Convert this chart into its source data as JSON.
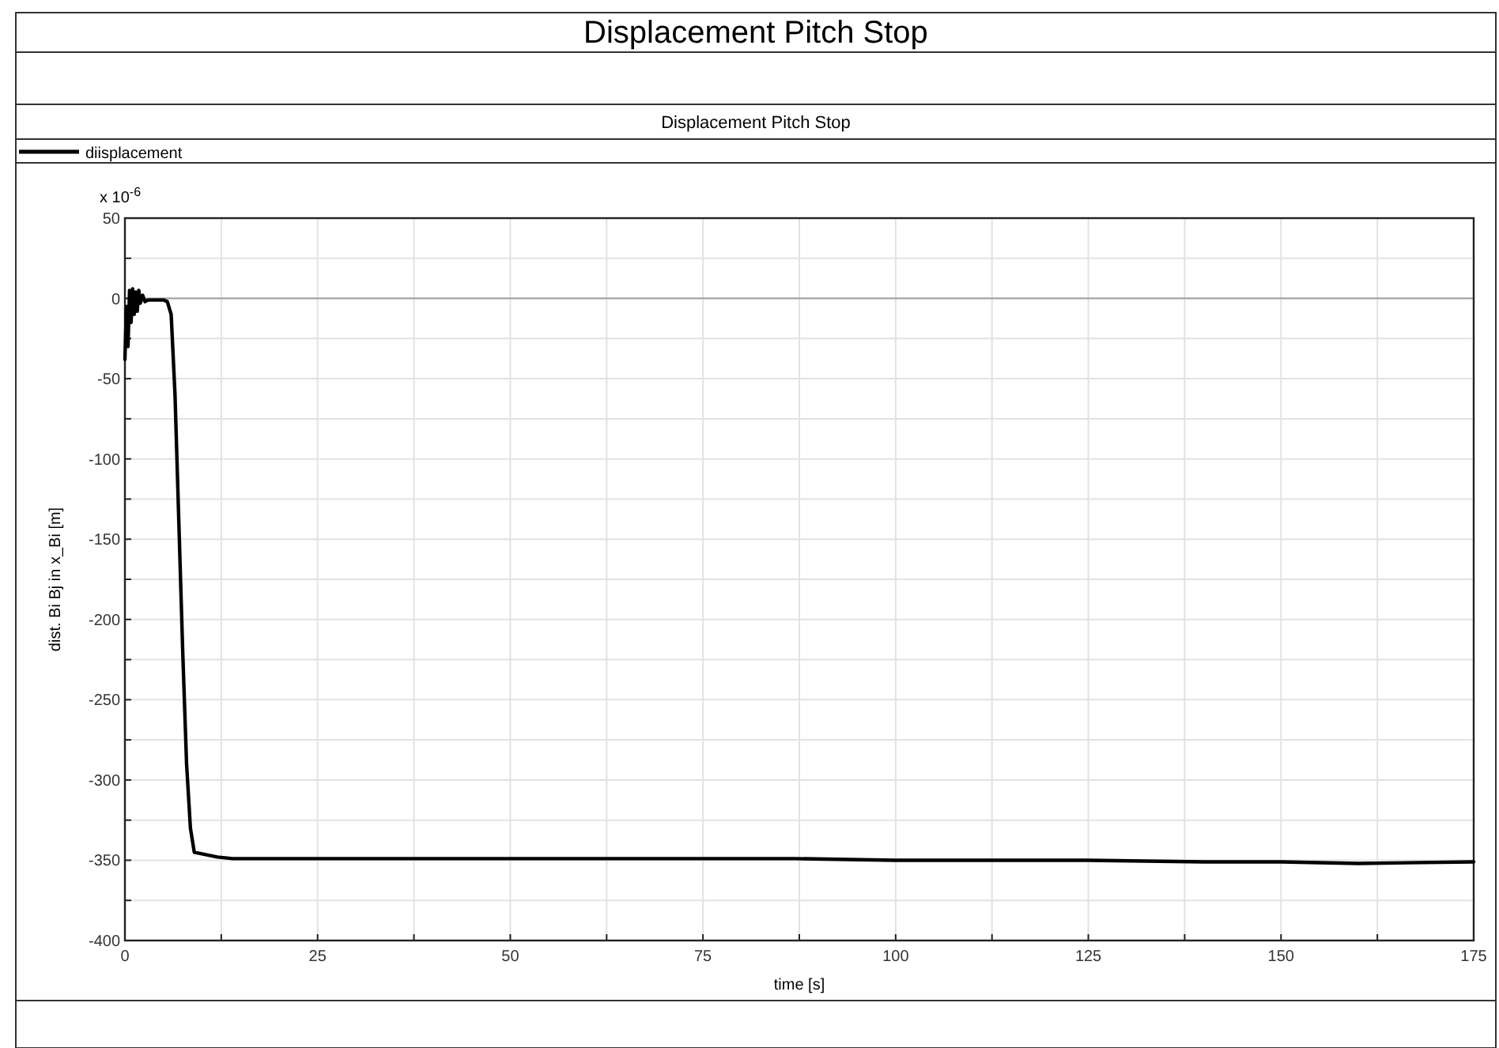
{
  "chart_data": {
    "type": "line",
    "title": "Displacement Pitch Stop",
    "subtitle": "Displacement Pitch Stop",
    "xlabel": "time [s]",
    "ylabel": "dist. Bi Bj in x_Bi [m]",
    "annotations": [
      "x 10$^{-6}$"
    ],
    "legend": "top",
    "grid": true,
    "line_style": "solid",
    "marker": "none",
    "xlim": [
      0,
      175
    ],
    "xticks": [
      0,
      {
        "value": 12.5,
        "label": null
      },
      25,
      {
        "value": 37.5,
        "label": null
      },
      50,
      {
        "value": 62.5,
        "label": null
      },
      75,
      {
        "value": 87.5,
        "label": null
      },
      100,
      {
        "value": 112.5,
        "label": null
      },
      125,
      {
        "value": 137.5,
        "label": null
      },
      150,
      {
        "value": 162.5,
        "label": null
      },
      175
    ],
    "ylim": [
      -400,
      50
    ],
    "yticks": [
      -400,
      {
        "value": -375,
        "label": null
      },
      -350,
      {
        "value": -325,
        "label": null
      },
      -300,
      {
        "value": -275,
        "label": null
      },
      -250,
      {
        "value": -225,
        "label": null
      },
      -200,
      {
        "value": -175,
        "label": null
      },
      -150,
      {
        "value": -125,
        "label": null
      },
      -100,
      {
        "value": -75,
        "label": null
      },
      -50,
      {
        "value": -25,
        "label": null
      },
      0,
      {
        "value": 25,
        "label": null
      },
      50
    ],
    "ref_lines": [
      {
        "axis": "y",
        "value": 0,
        "color": "#a0a0a0"
      }
    ],
    "series": [
      {
        "name": "diisplacement",
        "color": "#000000",
        "x": [
          0,
          0.2,
          0.4,
          0.6,
          0.8,
          1.0,
          1.2,
          1.4,
          1.6,
          1.8,
          2.0,
          2.3,
          2.6,
          3,
          4,
          5,
          5.5,
          6,
          6.5,
          7,
          7.5,
          8,
          8.5,
          9,
          10,
          11,
          12,
          14,
          25,
          45,
          65,
          87,
          100,
          125,
          140,
          150,
          160,
          175
        ],
        "values": [
          -38,
          -5,
          -30,
          5,
          -15,
          6,
          -10,
          4,
          -8,
          5,
          -3,
          2,
          -2,
          -1,
          -1,
          -1,
          -2,
          -10,
          -60,
          -140,
          -220,
          -290,
          -330,
          -345,
          -346,
          -347,
          -348,
          -349,
          -349,
          -349,
          -349,
          -349,
          -350,
          -350,
          -351,
          -351,
          -352,
          -351
        ]
      }
    ]
  }
}
